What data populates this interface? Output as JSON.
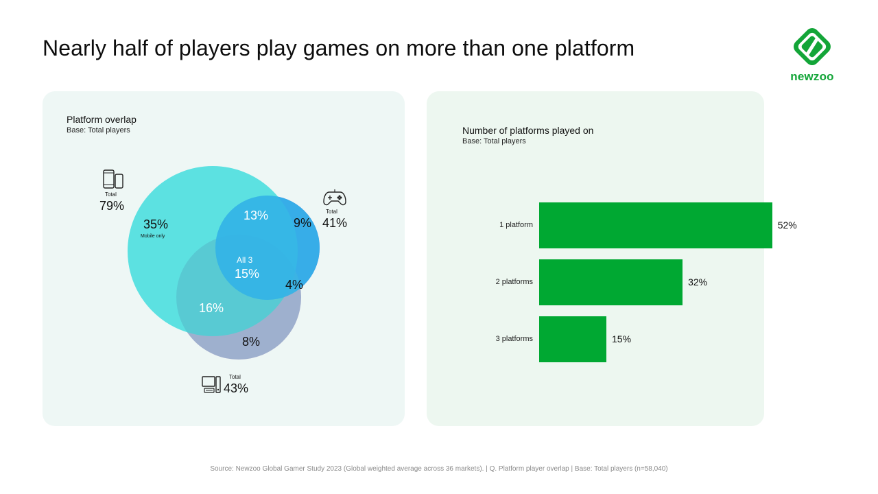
{
  "title": "Nearly half of players play games on more than one platform",
  "logo": {
    "text": "newzoo"
  },
  "colors": {
    "green": "#00a832",
    "mobile": "#5ce1e1",
    "console": "#6b6cf7",
    "pc": "#f7a6d4"
  },
  "venn": {
    "title": "Platform overlap",
    "base": "Base: Total players",
    "mobile": {
      "total_label": "Total",
      "total_value": "79%",
      "icon": "mobile-phone-tablet-icon"
    },
    "console": {
      "total_label": "Total",
      "total_value": "41%",
      "icon": "gamepad-icon"
    },
    "pc": {
      "total_label": "Total",
      "total_value": "43%",
      "icon": "desktop-pc-icon"
    },
    "regions": {
      "mobile_only": "35%",
      "mobile_only_label": "Mobile only",
      "mobile_console": "13%",
      "console_only": "9%",
      "all3_label": "All 3",
      "all3": "15%",
      "console_pc": "4%",
      "mobile_pc": "16%",
      "pc_only": "8%"
    }
  },
  "chart_data": {
    "type": "bar",
    "title": "Number of platforms played on",
    "subtitle": "Base: Total players",
    "categories": [
      "1 platform",
      "2 platforms",
      "3 platforms"
    ],
    "values": [
      52,
      32,
      15
    ],
    "value_labels": [
      "52%",
      "32%",
      "15%"
    ],
    "xlim": [
      0,
      60
    ],
    "orientation": "horizontal"
  },
  "footer": "Source: Newzoo Global Gamer Study 2023 (Global weighted average across 36 markets).  |  Q. Platform player overlap  |  Base: Total players (n=58,040)"
}
